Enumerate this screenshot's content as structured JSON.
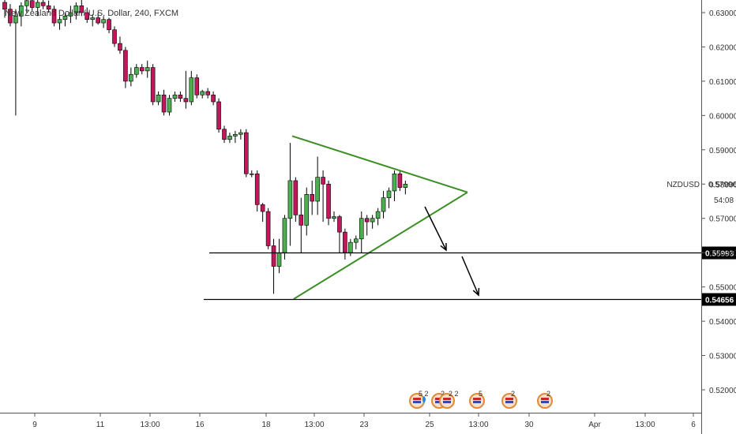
{
  "chart_data": {
    "type": "candlestick",
    "title": "New Zealand Dollar / U.S. Dollar, 240, FXCM",
    "symbol": "NZDUSD",
    "last_price": "0.57996",
    "countdown": "54:08",
    "ylim": [
      0.5115,
      0.6355
    ],
    "y_ticks": [
      "0.63000",
      "0.62000",
      "0.61000",
      "0.60000",
      "0.59000",
      "0.58000",
      "0.57000",
      "0.56000",
      "0.55000",
      "0.54000",
      "0.53000",
      "0.52000"
    ],
    "x_ticks": [
      "9",
      "11",
      "13:00",
      "16",
      "18",
      "13:00",
      "23",
      "25",
      "13:00",
      "30",
      "Apr",
      "13:00",
      "6"
    ],
    "candles": [
      [
        0.633,
        0.6345,
        0.6285,
        0.631
      ],
      [
        0.631,
        0.6325,
        0.626,
        0.627
      ],
      [
        0.627,
        0.631,
        0.6,
        0.629
      ],
      [
        0.629,
        0.633,
        0.626,
        0.632
      ],
      [
        0.632,
        0.6345,
        0.63,
        0.6335
      ],
      [
        0.6335,
        0.635,
        0.6305,
        0.6315
      ],
      [
        0.6315,
        0.634,
        0.629,
        0.633
      ],
      [
        0.633,
        0.6345,
        0.631,
        0.632
      ],
      [
        0.632,
        0.6335,
        0.63,
        0.631
      ],
      [
        0.631,
        0.632,
        0.626,
        0.627
      ],
      [
        0.627,
        0.629,
        0.625,
        0.628
      ],
      [
        0.628,
        0.63,
        0.626,
        0.629
      ],
      [
        0.629,
        0.632,
        0.627,
        0.63
      ],
      [
        0.63,
        0.633,
        0.628,
        0.632
      ],
      [
        0.632,
        0.634,
        0.629,
        0.63
      ],
      [
        0.63,
        0.6315,
        0.627,
        0.628
      ],
      [
        0.628,
        0.6295,
        0.626,
        0.6285
      ],
      [
        0.6285,
        0.63,
        0.6265,
        0.627
      ],
      [
        0.627,
        0.629,
        0.6255,
        0.628
      ],
      [
        0.628,
        0.6285,
        0.624,
        0.625
      ],
      [
        0.625,
        0.626,
        0.62,
        0.621
      ],
      [
        0.621,
        0.623,
        0.618,
        0.619
      ],
      [
        0.619,
        0.62,
        0.608,
        0.61
      ],
      [
        0.61,
        0.614,
        0.6085,
        0.612
      ],
      [
        0.612,
        0.615,
        0.611,
        0.614
      ],
      [
        0.614,
        0.615,
        0.612,
        0.613
      ],
      [
        0.613,
        0.616,
        0.611,
        0.614
      ],
      [
        0.614,
        0.615,
        0.603,
        0.604
      ],
      [
        0.604,
        0.607,
        0.603,
        0.606
      ],
      [
        0.606,
        0.6075,
        0.6,
        0.601
      ],
      [
        0.601,
        0.606,
        0.6,
        0.605
      ],
      [
        0.605,
        0.607,
        0.604,
        0.606
      ],
      [
        0.606,
        0.607,
        0.604,
        0.605
      ],
      [
        0.605,
        0.613,
        0.602,
        0.604
      ],
      [
        0.604,
        0.613,
        0.603,
        0.611
      ],
      [
        0.611,
        0.612,
        0.605,
        0.606
      ],
      [
        0.606,
        0.6075,
        0.605,
        0.607
      ],
      [
        0.607,
        0.608,
        0.605,
        0.606
      ],
      [
        0.606,
        0.607,
        0.603,
        0.604
      ],
      [
        0.604,
        0.605,
        0.595,
        0.596
      ],
      [
        0.596,
        0.597,
        0.592,
        0.593
      ],
      [
        0.593,
        0.595,
        0.592,
        0.594
      ],
      [
        0.594,
        0.5955,
        0.592,
        0.5945
      ],
      [
        0.5945,
        0.596,
        0.593,
        0.595
      ],
      [
        0.595,
        0.596,
        0.582,
        0.583
      ],
      [
        0.583,
        0.584,
        0.582,
        0.583
      ],
      [
        0.583,
        0.584,
        0.572,
        0.574
      ],
      [
        0.574,
        0.5745,
        0.569,
        0.572
      ],
      [
        0.572,
        0.573,
        0.561,
        0.562
      ],
      [
        0.562,
        0.564,
        0.548,
        0.556
      ],
      [
        0.556,
        0.564,
        0.554,
        0.56
      ],
      [
        0.56,
        0.571,
        0.558,
        0.57
      ],
      [
        0.57,
        0.592,
        0.562,
        0.581
      ],
      [
        0.581,
        0.582,
        0.569,
        0.571
      ],
      [
        0.571,
        0.576,
        0.56,
        0.568
      ],
      [
        0.568,
        0.579,
        0.565,
        0.577
      ],
      [
        0.577,
        0.581,
        0.571,
        0.575
      ],
      [
        0.575,
        0.588,
        0.571,
        0.582
      ],
      [
        0.582,
        0.584,
        0.569,
        0.58
      ],
      [
        0.58,
        0.581,
        0.568,
        0.57
      ],
      [
        0.57,
        0.572,
        0.569,
        0.5705
      ],
      [
        0.5705,
        0.571,
        0.56,
        0.566
      ],
      [
        0.566,
        0.567,
        0.558,
        0.56
      ],
      [
        0.56,
        0.564,
        0.559,
        0.563
      ],
      [
        0.563,
        0.565,
        0.561,
        0.564
      ],
      [
        0.564,
        0.572,
        0.56,
        0.57
      ],
      [
        0.57,
        0.571,
        0.565,
        0.569
      ],
      [
        0.569,
        0.571,
        0.567,
        0.57
      ],
      [
        0.57,
        0.573,
        0.568,
        0.572
      ],
      [
        0.572,
        0.578,
        0.57,
        0.576
      ],
      [
        0.576,
        0.579,
        0.573,
        0.578
      ],
      [
        0.578,
        0.584,
        0.575,
        0.583
      ],
      [
        0.583,
        0.584,
        0.578,
        0.579
      ],
      [
        0.579,
        0.581,
        0.577,
        0.58
      ]
    ],
    "bull_color": "#4caf50",
    "bear_color": "#c2185b",
    "pattern_color": "#3c8f25",
    "triangle": {
      "apex": [
        "2019-03-27 01:00",
        0.5776
      ],
      "upper_start": [
        "2019-03-22 09:00",
        0.594
      ],
      "lower_start": [
        "2019-03-22 09:00",
        0.5465
      ]
    },
    "levels": [
      {
        "value": "0.55993",
        "color": "#000000"
      },
      {
        "value": "0.54656",
        "color": "#000000"
      }
    ],
    "badges": [
      "5",
      "2",
      "2",
      "2",
      "5",
      "2",
      "2"
    ]
  }
}
